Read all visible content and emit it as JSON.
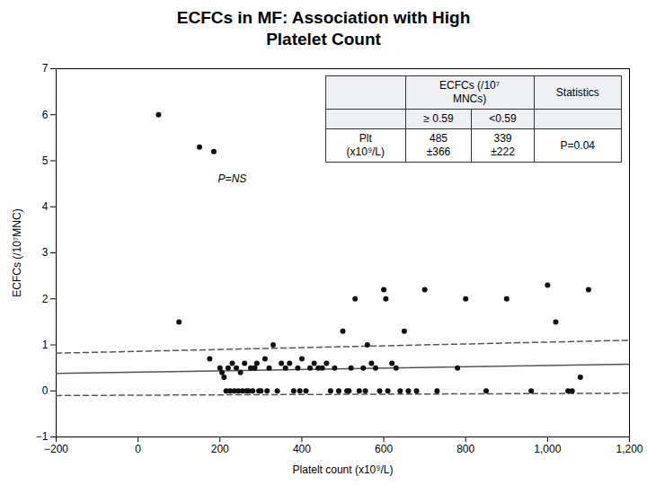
{
  "chart_data": {
    "type": "scatter",
    "title": "ECFCs in MF: Association with High\nPlatelet Count",
    "x_label": "Platelt count (x10⁹/L)",
    "y_label": "ECFCs (/10⁷MNC)",
    "xlim": [
      -200,
      1200
    ],
    "ylim": [
      -1,
      7
    ],
    "xticks": [
      -200,
      0,
      200,
      400,
      600,
      800,
      1000,
      1200
    ],
    "yticks": [
      -1,
      0,
      1,
      2,
      3,
      4,
      5,
      6,
      7
    ],
    "grid": false,
    "points": {
      "color": "#111111",
      "x": [
        50,
        100,
        150,
        175,
        185,
        200,
        205,
        210,
        215,
        220,
        225,
        230,
        235,
        240,
        245,
        250,
        255,
        260,
        265,
        270,
        275,
        280,
        285,
        290,
        295,
        300,
        310,
        315,
        320,
        330,
        340,
        350,
        360,
        370,
        380,
        390,
        395,
        400,
        410,
        420,
        430,
        440,
        450,
        460,
        470,
        480,
        490,
        500,
        510,
        515,
        520,
        530,
        540,
        550,
        555,
        560,
        570,
        580,
        590,
        600,
        605,
        610,
        620,
        630,
        640,
        650,
        660,
        680,
        700,
        730,
        780,
        800,
        850,
        900,
        960,
        1000,
        1020,
        1050,
        1060,
        1080,
        1100
      ],
      "y": [
        6.0,
        1.5,
        5.3,
        0.7,
        5.2,
        0.5,
        0.4,
        0.3,
        0.0,
        0.5,
        0.0,
        0.6,
        0.0,
        0.5,
        0.0,
        0.4,
        0.0,
        0.6,
        0.0,
        0.0,
        0.5,
        0.0,
        0.5,
        0.6,
        0.0,
        0.0,
        0.7,
        0.0,
        0.5,
        1.0,
        0.0,
        0.6,
        0.5,
        0.6,
        0.0,
        0.5,
        0.0,
        0.7,
        0.0,
        0.5,
        0.6,
        0.5,
        0.5,
        0.6,
        0.0,
        0.5,
        0.0,
        1.3,
        0.0,
        0.0,
        0.5,
        2.0,
        0.0,
        0.5,
        0.0,
        1.0,
        0.6,
        0.5,
        0.0,
        2.2,
        2.0,
        0.0,
        0.6,
        0.5,
        0.0,
        1.3,
        0.0,
        0.0,
        2.2,
        0.0,
        0.5,
        2.0,
        0.0,
        2.0,
        0.0,
        2.3,
        1.5,
        0.0,
        0.0,
        0.3,
        2.2
      ]
    },
    "lines": [
      {
        "x": [
          -200,
          1200
        ],
        "y": [
          0.38,
          0.58
        ],
        "color": "#555555",
        "line_style": "solid"
      },
      {
        "x": [
          -200,
          1200
        ],
        "y": [
          0.82,
          1.1
        ],
        "color": "#555555",
        "line_style": "dashed"
      },
      {
        "x": [
          -200,
          1200
        ],
        "y": [
          -0.1,
          -0.05
        ],
        "color": "#555555",
        "line_style": "dashed"
      }
    ],
    "annotations": [
      {
        "text": "P=NS",
        "x": 230,
        "y": 4.6
      }
    ],
    "table": {
      "header": [
        "ECFCs (/10⁷\nMNCs)",
        "Statistics"
      ],
      "subheader": [
        "≥ 0.59",
        "<0.59"
      ],
      "rows": [
        [
          "Plt\n(x10⁹/L)",
          "485\n±366",
          "339\n±222",
          "P=0.04"
        ]
      ]
    }
  }
}
